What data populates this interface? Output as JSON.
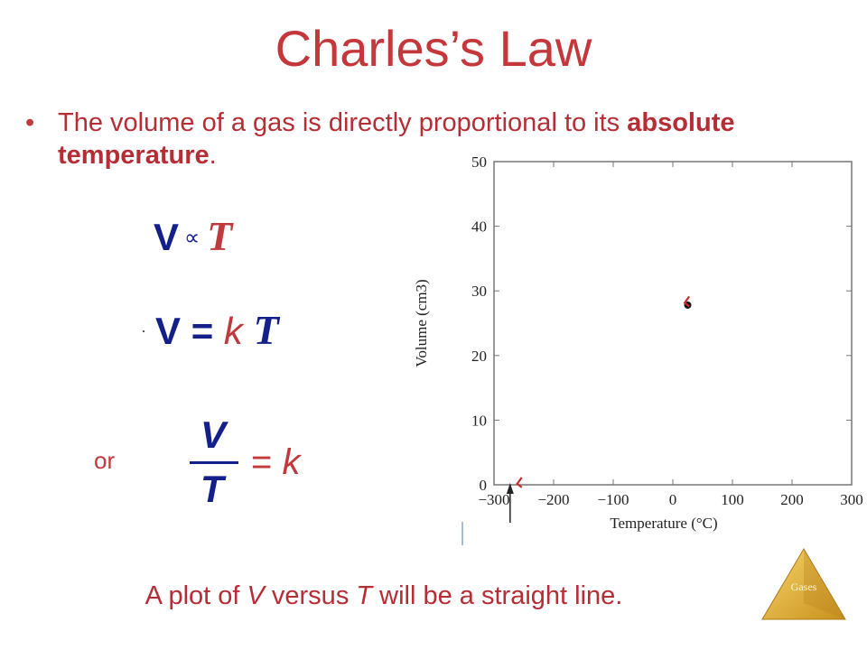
{
  "slide": {
    "title": "Charles’s Law",
    "bullet": {
      "marker": "•",
      "text_before": "The volume of a gas is directly proportional to its ",
      "text_bold": "absolute temperature",
      "text_after": "."
    },
    "equations": {
      "eq1": {
        "V": "V",
        "prop": "∝",
        "T": "T"
      },
      "eq2": {
        "V": "V",
        "eq": "=",
        "k": "k",
        "T": "T"
      },
      "eq3": {
        "or": "or",
        "num": "V",
        "den": "T",
        "eq": "=",
        "k": "k"
      }
    },
    "caption": {
      "part1": "A plot of ",
      "V": "V",
      "part2": " versus ",
      "T": "T",
      "part3": " will be a straight line."
    },
    "logo_label": "Gases",
    "colors": {
      "title": "#c4373a",
      "text": "#b52d35",
      "equation_blue": "#14208a",
      "logo": "#e8b838"
    }
  },
  "chart_data": {
    "type": "scatter",
    "xlabel": "Temperature (°C)",
    "ylabel": "Volume (cm3)",
    "xlim": [
      -300,
      300
    ],
    "ylim": [
      0,
      50
    ],
    "x_ticks": [
      -300,
      -200,
      -100,
      0,
      100,
      200,
      300
    ],
    "y_ticks": [
      0,
      10,
      20,
      30,
      40,
      50
    ],
    "x_tick_labels": [
      "−300",
      "−200",
      "−100",
      "0",
      "100",
      "200",
      "300"
    ],
    "y_tick_labels": [
      "0",
      "10",
      "20",
      "30",
      "40",
      "50"
    ],
    "series": [
      {
        "points": [
          {
            "x": 25,
            "y": 27.8
          }
        ],
        "color": "#111111"
      }
    ],
    "extra_marks": [
      {
        "kind": "red-tick",
        "x": 23,
        "y": 28.3,
        "color": "#cc2b2b"
      },
      {
        "kind": "red-tick",
        "x": -258,
        "y": 0.3,
        "color": "#cc2b2b"
      },
      {
        "kind": "arrow-up",
        "x": -273,
        "y": 0,
        "color": "#222222"
      }
    ],
    "grid": false
  }
}
